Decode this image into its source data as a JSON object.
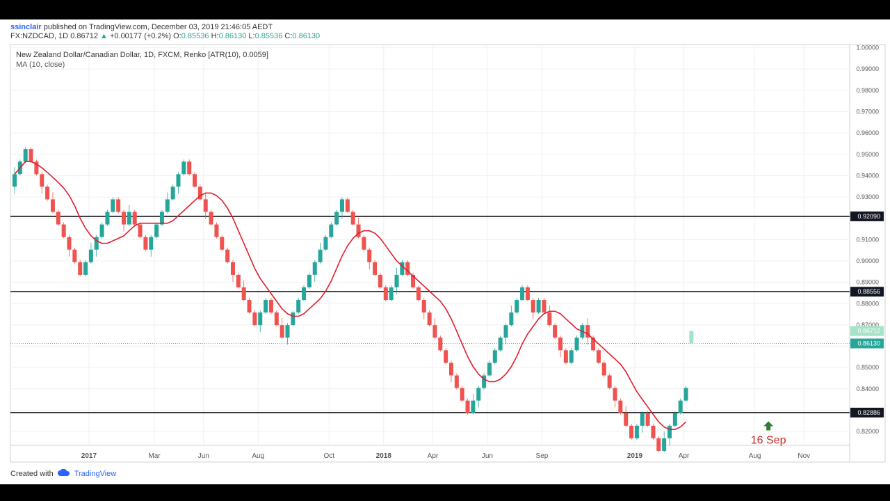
{
  "header": {
    "user": "ssinclair",
    "published_text": "published on TradingView.com, December 03, 2019 21:46:05 AEDT",
    "symbol": "FX:NZDCAD, 1D",
    "last": "0.86712",
    "arrow": "▲",
    "change": "+0.00177 (+0.2%)",
    "o_label": "O:",
    "o_val": "0.85536",
    "h_label": "H:",
    "h_val": "0.86130",
    "l_label": "L:",
    "l_val": "0.85536",
    "c_label": "C:",
    "c_val": "0.86130"
  },
  "footer": {
    "created": "Created with",
    "brand": "TradingView"
  },
  "colors": {
    "up": "#26a69a",
    "down": "#ef5350",
    "ma": "#e31b2e",
    "hline": "#111111"
  },
  "chart_data": {
    "type": "renko",
    "title": "New Zealand Dollar/Canadian Dollar, 1D, FXCM, Renko [ATR(10), 0.0059]",
    "indicator": "MA (10, close)",
    "box_size": 0.0059,
    "ylim": [
      0.8135,
      1.0015
    ],
    "y_ticks": [
      0.82,
      0.83,
      0.84,
      0.85,
      0.86,
      0.87,
      0.88,
      0.89,
      0.9,
      0.91,
      0.92,
      0.93,
      0.94,
      0.95,
      0.96,
      0.97,
      0.98,
      0.99,
      1.0
    ],
    "y_tick_labels": [
      "0.82000",
      "0.83000",
      "0.84000",
      "0.85000",
      "0.86000",
      "0.87000",
      "0.88000",
      "0.89000",
      "0.90000",
      "0.91000",
      "0.92000",
      "0.93000",
      "0.94000",
      "0.95000",
      "0.96000",
      "0.97000",
      "0.98000",
      "0.99000",
      "1.00000"
    ],
    "x_ticks": [
      {
        "label": "2017",
        "bold": true,
        "brick": 14
      },
      {
        "label": "Mar",
        "bold": false,
        "brick": 26
      },
      {
        "label": "Jun",
        "bold": false,
        "brick": 35
      },
      {
        "label": "Aug",
        "bold": false,
        "brick": 45
      },
      {
        "label": "Oct",
        "bold": false,
        "brick": 58
      },
      {
        "label": "2018",
        "bold": true,
        "brick": 68
      },
      {
        "label": "Apr",
        "bold": false,
        "brick": 77
      },
      {
        "label": "Jun",
        "bold": false,
        "brick": 87
      },
      {
        "label": "Sep",
        "bold": false,
        "brick": 97
      },
      {
        "label": "2019",
        "bold": true,
        "brick": 114
      },
      {
        "label": "Apr",
        "bold": false,
        "brick": 123
      },
      {
        "label": "Aug",
        "bold": false,
        "brick": 136
      },
      {
        "label": "Nov",
        "bold": false,
        "brick": 145
      }
    ],
    "renko_moves": [
      1,
      1,
      1,
      -1,
      -1,
      -1,
      -1,
      -1,
      -1,
      -1,
      -1,
      -1,
      -1,
      1,
      1,
      1,
      1,
      1,
      1,
      -1,
      -1,
      1,
      -1,
      -1,
      -1,
      1,
      1,
      1,
      1,
      1,
      1,
      1,
      -1,
      -1,
      -1,
      -1,
      -1,
      -1,
      -1,
      -1,
      -1,
      -1,
      -1,
      -1,
      -1,
      1,
      1,
      -1,
      -1,
      -1,
      1,
      1,
      1,
      1,
      1,
      1,
      1,
      1,
      1,
      1,
      1,
      -1,
      -1,
      -1,
      -1,
      -1,
      -1,
      -1,
      -1,
      1,
      1,
      1,
      -1,
      -1,
      -1,
      -1,
      -1,
      -1,
      -1,
      -1,
      -1,
      -1,
      -1,
      -1,
      1,
      1,
      1,
      1,
      1,
      1,
      1,
      1,
      1,
      1,
      -1,
      -1,
      1,
      -1,
      -1,
      -1,
      -1,
      -1,
      1,
      1,
      1,
      -1,
      -1,
      -1,
      -1,
      -1,
      -1,
      -1,
      -1,
      -1,
      1,
      1,
      -1,
      -1,
      -1,
      1,
      1,
      1,
      1,
      1
    ],
    "start_low": 0.9348,
    "last_brick_projection": {
      "low": 0.8613,
      "high": 0.86712
    },
    "horizontal_lines": [
      0.9209,
      0.88556,
      0.82886
    ],
    "price_labels": [
      {
        "value": 0.9209,
        "text": "0.92090",
        "style": "black"
      },
      {
        "value": 0.88556,
        "text": "0.88556",
        "style": "black"
      },
      {
        "value": 0.86712,
        "text": "0.86712",
        "style": "lightgreen"
      },
      {
        "value": 0.8613,
        "text": "0.86130",
        "style": "green"
      },
      {
        "value": 0.82886,
        "text": "0.82886",
        "style": "black"
      }
    ],
    "annotation": {
      "text": "16 Sep",
      "arrow": "up",
      "brick": 139,
      "value": 0.8215
    }
  }
}
